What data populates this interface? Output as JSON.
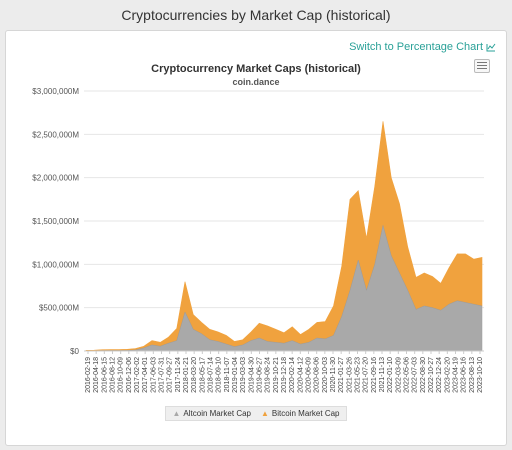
{
  "header": {
    "title": "Cryptocurrencies by Market Cap (historical)"
  },
  "link": {
    "label": "Switch to Percentage Chart",
    "icon": "line-chart-icon"
  },
  "menu": {
    "icon": "hamburger-menu-icon"
  },
  "colors": {
    "altcoin": "#a9a9a9",
    "bitcoin": "#f0a23e",
    "link": "#2aa198"
  },
  "chart_data": {
    "type": "area",
    "stacked": true,
    "title": "Cryptocurrency Market Caps (historical)",
    "subtitle": "coin.dance",
    "xlabel": "",
    "ylabel": "",
    "ylim": [
      0,
      3000000
    ],
    "y_ticks": [
      "$0",
      "$500,000M",
      "$1,000,000M",
      "$1,500,000M",
      "$2,000,000M",
      "$2,500,000M",
      "$3,000,000M"
    ],
    "x_ticks": [
      "2016-02-19",
      "2016-04-18",
      "2016-06-15",
      "2016-08-12",
      "2016-10-09",
      "2016-12-06",
      "2017-02-02",
      "2017-04-01",
      "2017-06-03",
      "2017-07-31",
      "2017-09-27",
      "2017-11-24",
      "2018-01-21",
      "2018-03-20",
      "2018-05-17",
      "2018-07-14",
      "2018-09-10",
      "2018-11-07",
      "2019-01-04",
      "2019-03-03",
      "2019-04-30",
      "2019-06-27",
      "2019-08-24",
      "2019-10-21",
      "2019-12-18",
      "2020-02-14",
      "2020-04-12",
      "2020-06-09",
      "2020-08-06",
      "2020-10-03",
      "2020-11-30",
      "2021-01-27",
      "2021-03-26",
      "2021-05-23",
      "2021-07-20",
      "2021-09-16",
      "2021-11-13",
      "2022-01-10",
      "2022-03-09",
      "2022-05-06",
      "2022-07-03",
      "2022-08-30",
      "2022-10-27",
      "2022-12-24",
      "2023-02-20",
      "2023-04-19",
      "2023-06-16",
      "2023-08-13",
      "2023-10-10"
    ],
    "grid": true,
    "legend_position": "bottom",
    "series": [
      {
        "name": "Altcoin Market Cap",
        "values": [
          2000,
          3000,
          5000,
          6000,
          6000,
          7000,
          12000,
          35000,
          70000,
          55000,
          90000,
          120000,
          450000,
          250000,
          200000,
          130000,
          110000,
          80000,
          50000,
          70000,
          120000,
          150000,
          110000,
          100000,
          90000,
          120000,
          80000,
          100000,
          150000,
          140000,
          180000,
          400000,
          700000,
          1050000,
          700000,
          1000000,
          1450000,
          1100000,
          900000,
          700000,
          480000,
          520000,
          500000,
          470000,
          540000,
          580000,
          560000,
          540000,
          520000
        ]
      },
      {
        "name": "Bitcoin Market Cap",
        "values": [
          6000,
          7000,
          10000,
          11000,
          11000,
          13000,
          17000,
          20000,
          50000,
          45000,
          70000,
          140000,
          350000,
          170000,
          130000,
          120000,
          110000,
          100000,
          60000,
          60000,
          100000,
          170000,
          180000,
          150000,
          120000,
          160000,
          110000,
          150000,
          180000,
          200000,
          340000,
          580000,
          1050000,
          800000,
          600000,
          900000,
          1200000,
          900000,
          800000,
          500000,
          370000,
          380000,
          360000,
          310000,
          420000,
          540000,
          560000,
          520000,
          560000
        ]
      }
    ]
  },
  "legend": {
    "altcoin": "Altcoin Market Cap",
    "bitcoin": "Bitcoin Market Cap"
  }
}
